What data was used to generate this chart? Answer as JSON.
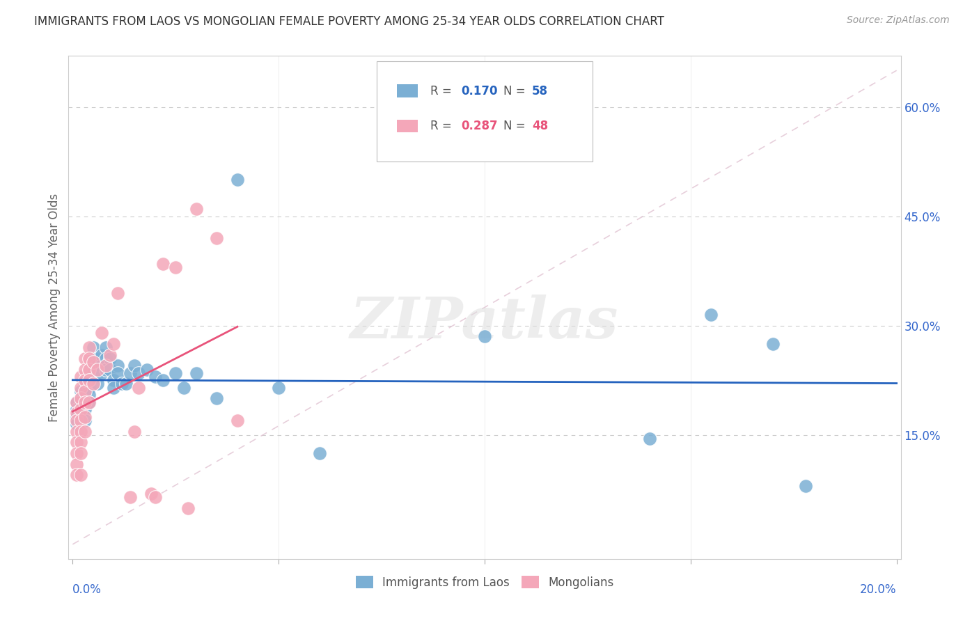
{
  "title": "IMMIGRANTS FROM LAOS VS MONGOLIAN FEMALE POVERTY AMONG 25-34 YEAR OLDS CORRELATION CHART",
  "source": "Source: ZipAtlas.com",
  "xlabel_ticks": [
    "0.0%",
    "",
    "",
    "",
    "",
    "",
    "",
    "",
    "",
    "",
    "",
    "",
    "",
    "",
    "",
    "",
    "",
    "",
    "",
    "",
    "20.0%"
  ],
  "xlabel_vals": [
    0.0,
    0.01,
    0.02,
    0.03,
    0.04,
    0.05,
    0.06,
    0.07,
    0.08,
    0.09,
    0.1,
    0.11,
    0.12,
    0.13,
    0.14,
    0.15,
    0.16,
    0.17,
    0.18,
    0.19,
    0.2
  ],
  "ylabel": "Female Poverty Among 25-34 Year Olds",
  "ylabel_ticks": [
    "15.0%",
    "30.0%",
    "45.0%",
    "60.0%"
  ],
  "ylabel_vals": [
    0.15,
    0.3,
    0.45,
    0.6
  ],
  "xlim": [
    -0.001,
    0.201
  ],
  "ylim": [
    -0.02,
    0.67
  ],
  "laos_R": 0.17,
  "laos_N": 58,
  "mongol_R": 0.287,
  "mongol_N": 48,
  "blue_color": "#7BAFD4",
  "pink_color": "#F4A7B9",
  "trend_blue": "#2563BE",
  "trend_pink": "#E8537A",
  "ref_line_color": "#D8D8D8",
  "legend_label_laos": "Immigrants from Laos",
  "legend_label_mongol": "Mongolians",
  "watermark": "ZIPatlas",
  "laos_x": [
    0.001,
    0.001,
    0.001,
    0.001,
    0.002,
    0.002,
    0.002,
    0.002,
    0.002,
    0.003,
    0.003,
    0.003,
    0.003,
    0.003,
    0.004,
    0.004,
    0.004,
    0.004,
    0.005,
    0.005,
    0.005,
    0.005,
    0.006,
    0.006,
    0.006,
    0.006,
    0.007,
    0.007,
    0.007,
    0.008,
    0.008,
    0.008,
    0.009,
    0.009,
    0.01,
    0.01,
    0.011,
    0.011,
    0.012,
    0.013,
    0.014,
    0.015,
    0.016,
    0.018,
    0.02,
    0.022,
    0.025,
    0.027,
    0.03,
    0.035,
    0.04,
    0.05,
    0.06,
    0.1,
    0.14,
    0.155,
    0.17,
    0.178
  ],
  "laos_y": [
    0.195,
    0.185,
    0.175,
    0.165,
    0.21,
    0.2,
    0.19,
    0.18,
    0.17,
    0.22,
    0.21,
    0.195,
    0.185,
    0.17,
    0.225,
    0.215,
    0.205,
    0.195,
    0.27,
    0.255,
    0.245,
    0.235,
    0.255,
    0.245,
    0.235,
    0.22,
    0.26,
    0.245,
    0.235,
    0.27,
    0.255,
    0.24,
    0.255,
    0.24,
    0.225,
    0.215,
    0.245,
    0.235,
    0.22,
    0.22,
    0.235,
    0.245,
    0.235,
    0.24,
    0.23,
    0.225,
    0.235,
    0.215,
    0.235,
    0.2,
    0.5,
    0.215,
    0.125,
    0.285,
    0.145,
    0.315,
    0.275,
    0.08
  ],
  "mongol_x": [
    0.001,
    0.001,
    0.001,
    0.001,
    0.001,
    0.001,
    0.001,
    0.001,
    0.002,
    0.002,
    0.002,
    0.002,
    0.002,
    0.002,
    0.002,
    0.002,
    0.002,
    0.003,
    0.003,
    0.003,
    0.003,
    0.003,
    0.003,
    0.003,
    0.004,
    0.004,
    0.004,
    0.004,
    0.004,
    0.005,
    0.005,
    0.006,
    0.007,
    0.008,
    0.009,
    0.01,
    0.011,
    0.014,
    0.015,
    0.016,
    0.019,
    0.02,
    0.022,
    0.025,
    0.028,
    0.03,
    0.035,
    0.04
  ],
  "mongol_y": [
    0.195,
    0.18,
    0.17,
    0.155,
    0.14,
    0.125,
    0.11,
    0.095,
    0.23,
    0.215,
    0.2,
    0.185,
    0.17,
    0.155,
    0.14,
    0.125,
    0.095,
    0.255,
    0.24,
    0.225,
    0.21,
    0.195,
    0.175,
    0.155,
    0.27,
    0.255,
    0.24,
    0.225,
    0.195,
    0.25,
    0.22,
    0.24,
    0.29,
    0.245,
    0.26,
    0.275,
    0.345,
    0.065,
    0.155,
    0.215,
    0.07,
    0.065,
    0.385,
    0.38,
    0.05,
    0.46,
    0.42,
    0.17
  ]
}
